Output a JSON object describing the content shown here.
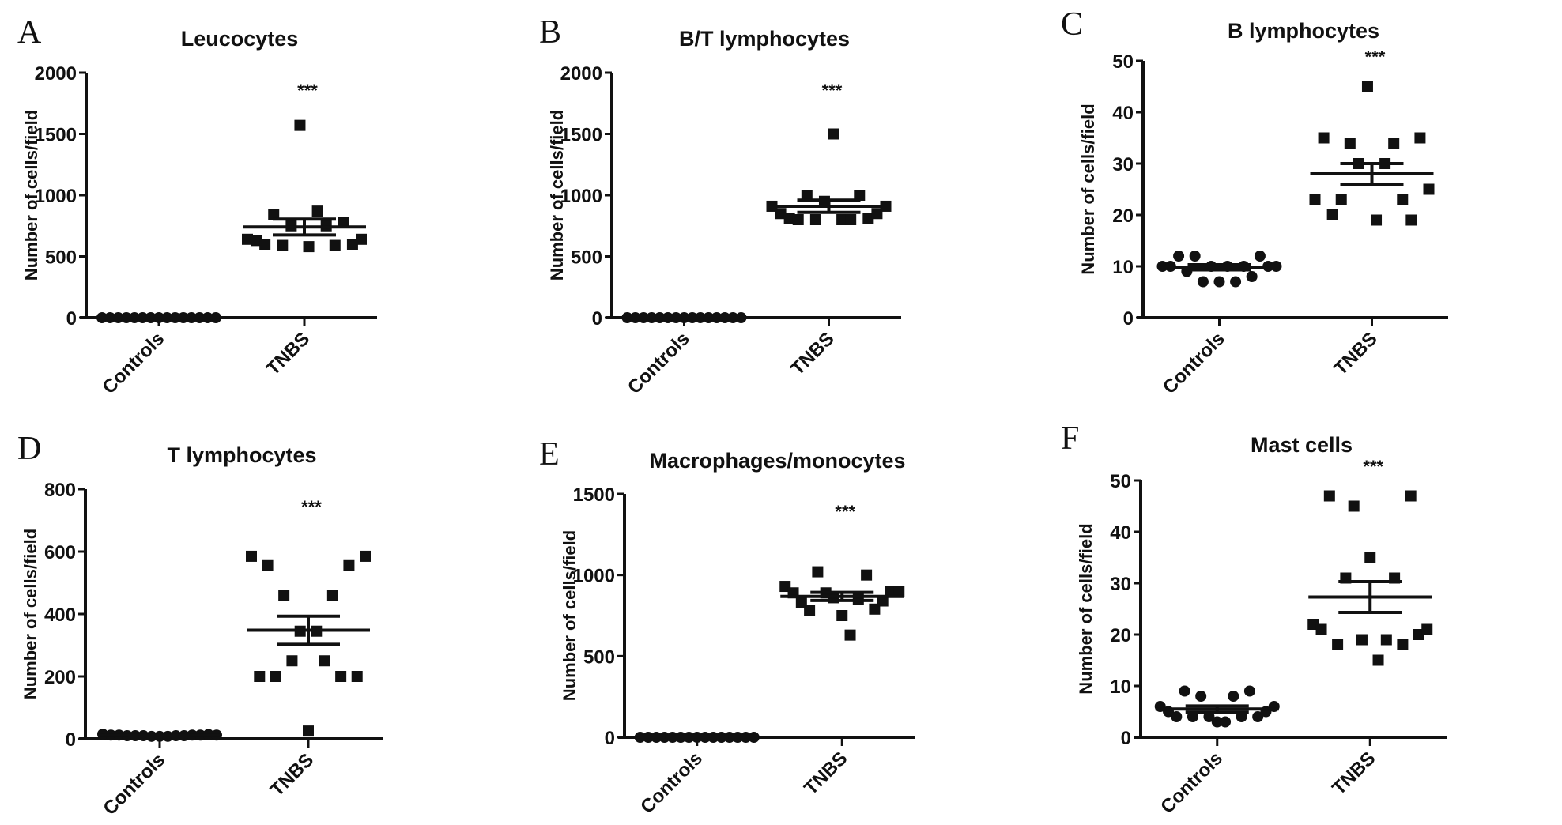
{
  "chart_data": [
    {
      "type": "scatter",
      "panel": "A",
      "title": "Leucocytes",
      "ylabel": "Number of cells/field",
      "categories": [
        "Controls",
        "TNBS"
      ],
      "ylim": [
        0,
        2000
      ],
      "yticks": [
        0,
        500,
        1000,
        1500,
        2000
      ],
      "significance": "***",
      "grid": false,
      "series": [
        {
          "values": [
            0,
            0,
            0,
            0,
            0,
            0,
            0,
            0,
            0,
            0,
            0,
            0,
            0,
            0,
            0
          ],
          "mean": 0,
          "sem": 0,
          "marker": "circle"
        },
        {
          "values": [
            640,
            630,
            600,
            840,
            590,
            750,
            1570,
            580,
            870,
            750,
            590,
            780,
            600,
            640
          ],
          "mean": 740,
          "sem": 65,
          "marker": "square"
        }
      ]
    },
    {
      "type": "scatter",
      "panel": "B",
      "title": "B/T lymphocytes",
      "ylabel": "Number of cells/field",
      "categories": [
        "Controls",
        "TNBS"
      ],
      "ylim": [
        0,
        2000
      ],
      "yticks": [
        0,
        500,
        1000,
        1500,
        2000
      ],
      "significance": "***",
      "grid": false,
      "series": [
        {
          "values": [
            0,
            0,
            0,
            0,
            0,
            0,
            0,
            0,
            0,
            0,
            0,
            0,
            0,
            0,
            0
          ],
          "mean": 0,
          "sem": 0,
          "marker": "circle"
        },
        {
          "values": [
            910,
            850,
            810,
            800,
            1000,
            800,
            950,
            1500,
            800,
            800,
            1000,
            810,
            850,
            910
          ],
          "mean": 910,
          "sem": 50,
          "marker": "square"
        }
      ]
    },
    {
      "type": "scatter",
      "panel": "C",
      "title": "B lymphocytes",
      "ylabel": "Number of cells/field",
      "categories": [
        "Controls",
        "TNBS"
      ],
      "ylim": [
        0,
        50
      ],
      "yticks": [
        0,
        10,
        20,
        30,
        40,
        50
      ],
      "significance": "***",
      "grid": false,
      "series": [
        {
          "values": [
            10,
            10,
            12,
            9,
            12,
            7,
            10,
            7,
            10,
            7,
            10,
            8,
            12,
            10,
            10
          ],
          "mean": 9.8,
          "sem": 0.5,
          "marker": "circle"
        },
        {
          "values": [
            23,
            35,
            20,
            23,
            34,
            30,
            45,
            19,
            30,
            34,
            23,
            19,
            35,
            25
          ],
          "mean": 28,
          "sem": 2,
          "marker": "square"
        }
      ]
    },
    {
      "type": "scatter",
      "panel": "D",
      "title": "T lymphocytes",
      "ylabel": "Number of cells/field",
      "categories": [
        "Controls",
        "TNBS"
      ],
      "ylim": [
        0,
        800
      ],
      "yticks": [
        0,
        200,
        400,
        600,
        800
      ],
      "significance": "***",
      "grid": false,
      "series": [
        {
          "values": [
            15,
            12,
            12,
            10,
            10,
            10,
            8,
            8,
            8,
            10,
            10,
            12,
            12,
            14,
            12
          ],
          "mean": 11,
          "sem": 1,
          "marker": "circle"
        },
        {
          "values": [
            585,
            200,
            555,
            200,
            460,
            250,
            345,
            25,
            345,
            250,
            460,
            200,
            555,
            200,
            585
          ],
          "mean": 348,
          "sem": 45,
          "marker": "square"
        }
      ]
    },
    {
      "type": "scatter",
      "panel": "E",
      "title": "Macrophages/monocytes",
      "ylabel": "Number of cells/field",
      "categories": [
        "Controls",
        "TNBS"
      ],
      "ylim": [
        0,
        1500
      ],
      "yticks": [
        0,
        500,
        1000,
        1500
      ],
      "significance": "***",
      "grid": false,
      "series": [
        {
          "values": [
            0,
            0,
            0,
            0,
            0,
            0,
            0,
            0,
            0,
            0,
            0,
            0,
            0,
            0,
            0
          ],
          "mean": 0,
          "sem": 0,
          "marker": "circle"
        },
        {
          "values": [
            930,
            890,
            830,
            780,
            1020,
            890,
            860,
            750,
            630,
            850,
            1000,
            790,
            840,
            900,
            900
          ],
          "mean": 868,
          "sem": 25,
          "marker": "square"
        }
      ]
    },
    {
      "type": "scatter",
      "panel": "F",
      "title": "Mast cells",
      "ylabel": "Number of cells/field",
      "categories": [
        "Controls",
        "TNBS"
      ],
      "ylim": [
        0,
        50
      ],
      "yticks": [
        0,
        10,
        20,
        30,
        40,
        50
      ],
      "significance": "***",
      "grid": false,
      "series": [
        {
          "values": [
            6,
            5,
            4,
            9,
            4,
            8,
            4,
            3,
            3,
            8,
            4,
            9,
            4,
            5,
            6
          ],
          "mean": 5.5,
          "sem": 0.6,
          "marker": "circle"
        },
        {
          "values": [
            22,
            21,
            47,
            18,
            31,
            45,
            19,
            35,
            15,
            19,
            31,
            18,
            47,
            20,
            21
          ],
          "mean": 27.3,
          "sem": 3,
          "marker": "square"
        }
      ]
    }
  ],
  "colors": {
    "ink": "#111111",
    "background": "#ffffff"
  }
}
